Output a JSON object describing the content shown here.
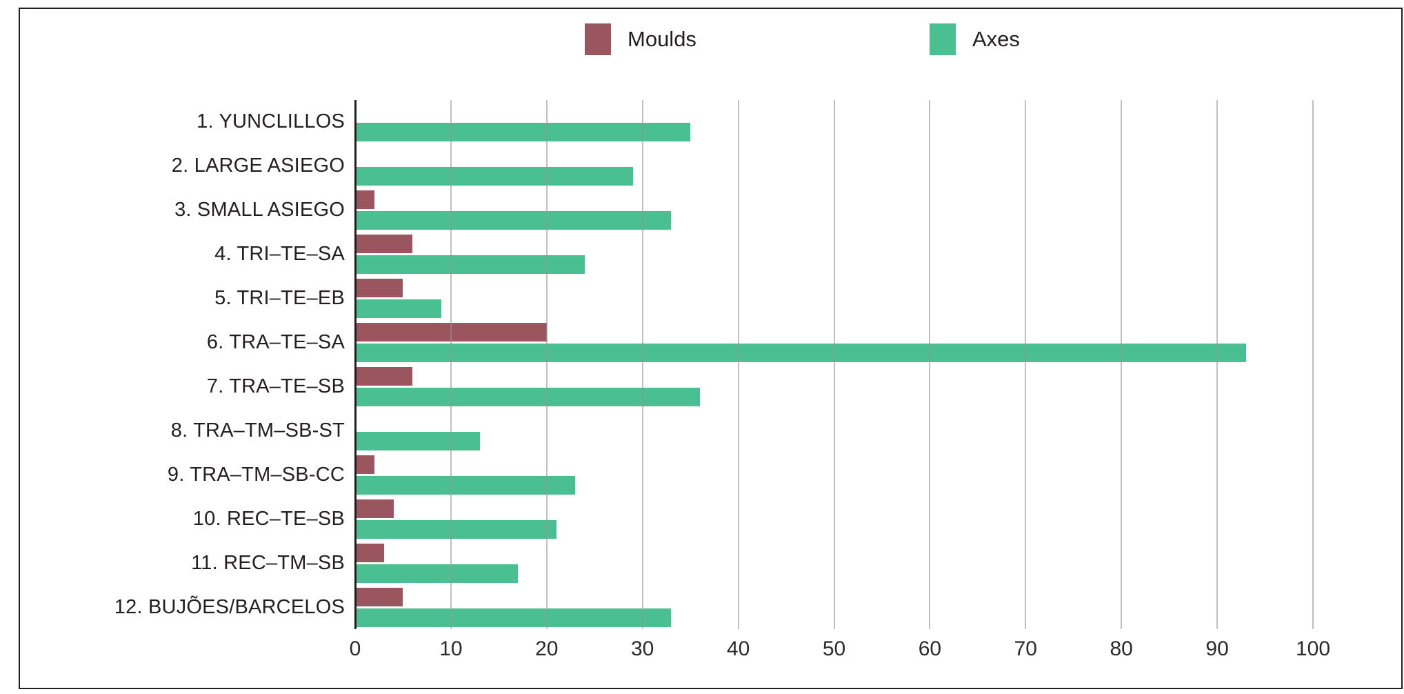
{
  "legend": {
    "moulds_label": "Moulds",
    "axes_label": "Axes"
  },
  "colors": {
    "moulds": "#9a555e",
    "axes": "#4abf92",
    "gridline": "#969696",
    "axis_line": "#231f20",
    "frame_border": "#231f20",
    "text": "#231f20"
  },
  "chart_data": {
    "type": "bar",
    "orientation": "horizontal",
    "title": "",
    "xlabel": "",
    "ylabel": "",
    "xlim": [
      0,
      100
    ],
    "x_ticks": [
      0,
      10,
      20,
      30,
      40,
      50,
      60,
      70,
      80,
      90,
      100
    ],
    "grid": "vertical",
    "legend_position": "top",
    "categories": [
      "1. YUNCLILLOS",
      "2. LARGE ASIEGO",
      "3. SMALL ASIEGO",
      "4. TRI–TE–SA",
      "5. TRI–TE–EB",
      "6. TRA–TE–SA",
      "7. TRA–TE–SB",
      "8. TRA–TM–SB-ST",
      "9. TRA–TM–SB-CC",
      "10. REC–TE–SB",
      "11. REC–TM–SB",
      "12. BUJÕES/BARCELOS"
    ],
    "series": [
      {
        "name": "Moulds",
        "color": "#9a555e",
        "values": [
          0,
          0,
          2,
          6,
          5,
          20,
          6,
          0,
          2,
          4,
          3,
          5
        ]
      },
      {
        "name": "Axes",
        "color": "#4abf92",
        "values": [
          35,
          29,
          33,
          24,
          9,
          93,
          36,
          13,
          23,
          21,
          17,
          33
        ]
      }
    ]
  }
}
